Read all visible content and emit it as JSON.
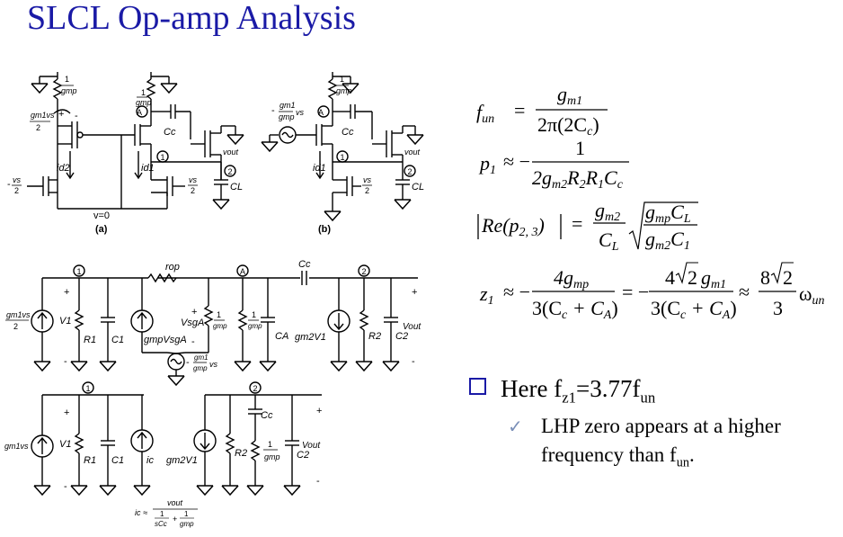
{
  "title": "SLCL Op-amp Analysis",
  "circuit_a": {
    "r_top_num": "1",
    "r_top_den": "gmp",
    "gm_left_num": "gm1vs",
    "gm_left_den": "2",
    "plus": "+",
    "minus": "-",
    "node_a": "A",
    "node_1": "1",
    "node_2": "2",
    "cc": "Cc",
    "vout": "vout",
    "cl": "CL",
    "id2": "id2",
    "id1": "id1",
    "vs_left_num": "vs",
    "vs_left_sign": "-",
    "vs_den": "2",
    "vs_right_num": "vs",
    "vs_right_den": "2",
    "v0": "v=0",
    "label": "(a)"
  },
  "circuit_b": {
    "r_top_num": "1",
    "r_top_den": "gmp",
    "src_sign": "-",
    "src_num": "gm1",
    "src_den": "gmp",
    "src_suffix": "vs",
    "node_a": "A",
    "node_1": "1",
    "node_2": "2",
    "cc": "Cc",
    "vout": "vout",
    "cl": "CL",
    "id1": "id1",
    "vs_num": "vs",
    "vs_den": "2",
    "label": "(b)"
  },
  "ss1": {
    "node_1": "1",
    "node_a": "A",
    "node_2": "2",
    "rop": "rop",
    "cc": "Cc",
    "src_num": "gm1vs",
    "src_den": "2",
    "v1": "V1",
    "r1": "R1",
    "c1": "C1",
    "vsga": "VsgA",
    "gmp_vsga": "gmpVsgA",
    "r_num": "1",
    "r_den": "gmp",
    "r2_num": "1",
    "r2_den": "gmp",
    "ca": "CA",
    "gm2v1": "gm2V1",
    "r2": "R2",
    "c2": "C2",
    "vout": "Vout",
    "v_src_sign": "-",
    "v_src_num": "gm1",
    "v_src_den": "gmp",
    "v_src_suffix": "vs",
    "plus": "+",
    "minus": "-"
  },
  "ss2": {
    "node_1": "1",
    "node_2": "2",
    "src": "gm1vs",
    "v1": "V1",
    "r1": "R1",
    "c1": "C1",
    "ic": "ic",
    "gm2v1": "gm2V1",
    "r2": "R2",
    "cc": "Cc",
    "r_num": "1",
    "r_den": "gmp",
    "c2": "C2",
    "vout": "Vout",
    "plus": "+",
    "minus": "-",
    "ic_lhs": "ic ≈",
    "ic_num": "vout",
    "ic_den_a_num": "1",
    "ic_den_a_den": "sCc",
    "ic_plus": "+",
    "ic_den_b_num": "1",
    "ic_den_b_den": "gmp"
  },
  "equations": {
    "fun_lhs": "f",
    "fun_lhs_sub": "un",
    "fun_eq": "=",
    "fun_num": "g",
    "fun_num_sub": "m1",
    "fun_den": "2π(2C",
    "fun_den_sub": "c",
    "fun_den_tail": ")",
    "p1_lhs": "p",
    "p1_lhs_sub": "1",
    "p1_rel": "≈ −",
    "p1_num": "1",
    "p1_den_a": "2g",
    "p1_den_a_sub": "m2",
    "p1_den_b": "R",
    "p1_den_b_sub": "2",
    "p1_den_c": "R",
    "p1_den_c_sub": "1",
    "p1_den_d": "C",
    "p1_den_d_sub": "c",
    "re_lhs": "Re(p",
    "re_lhs_sub": "2, 3",
    "re_tail": ")",
    "re_eq": "=",
    "re_num": "g",
    "re_num_sub": "m2",
    "re_den": "C",
    "re_den_sub": "L",
    "re_sq_num_a": "g",
    "re_sq_num_a_sub": "mp",
    "re_sq_num_b": "C",
    "re_sq_num_b_sub": "L",
    "re_sq_den_a": "g",
    "re_sq_den_a_sub": "m2",
    "re_sq_den_b": "C",
    "re_sq_den_b_sub": "1",
    "z1_lhs": "z",
    "z1_lhs_sub": "1",
    "z1_rel": "≈ −",
    "z1_num_a": "4g",
    "z1_num_a_sub": "mp",
    "z1_den_a": "3(C",
    "z1_den_a_sub1": "c",
    "z1_den_a_mid": " + C",
    "z1_den_a_sub2": "A",
    "z1_den_a_tail": ")",
    "z1_eq2": "= −",
    "z1_num_b_pre": "4",
    "z1_num_b_root": "2",
    "z1_num_b_g": "g",
    "z1_num_b_sub": "m1",
    "z1_approx": "≈",
    "z1_num_c_pre": "8",
    "z1_num_c_root": "2",
    "z1_den_c": "3",
    "z1_omega": "ω",
    "z1_omega_sub": "un"
  },
  "bullet": {
    "main_pre": "Here f",
    "main_sub1": "z1",
    "main_mid": "=3.77f",
    "main_sub2": "un",
    "sub_line1": "LHP zero appears at a higher",
    "sub_line2_pre": "frequency than f",
    "sub_line2_sub": "un",
    "sub_line2_tail": ".",
    "check": "✓"
  }
}
